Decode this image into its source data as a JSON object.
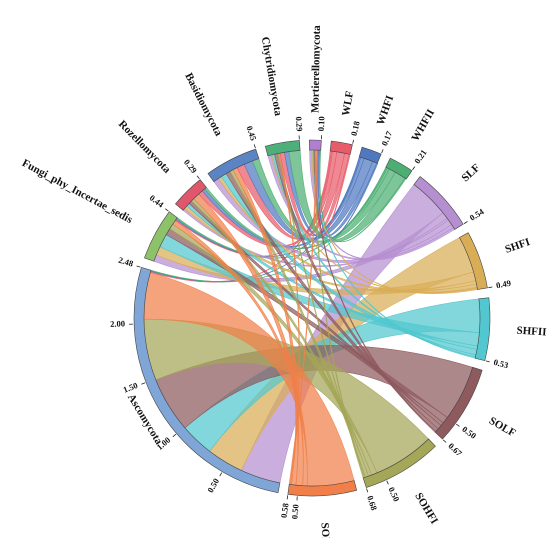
{
  "chart_data": {
    "type": "chord",
    "title": "",
    "groups": [
      {
        "name": "Ascomycota",
        "total": 2.48,
        "color": "#7fa6d6",
        "ticks": [
          "0.50",
          "1.00",
          "1.50",
          "2.00",
          "2.48"
        ]
      },
      {
        "name": "Fungi_phy_Incertae_sedis",
        "total": 0.44,
        "color": "#8dc16a",
        "ticks": [
          "0.44"
        ]
      },
      {
        "name": "Rozellomycota",
        "total": 0.29,
        "color": "#e0566d",
        "ticks": [
          "0.29"
        ]
      },
      {
        "name": "Basidiomycota",
        "total": 0.45,
        "color": "#5b84c4",
        "ticks": [
          "0.45"
        ]
      },
      {
        "name": "Chytridiomycota",
        "total": 0.29,
        "color": "#4daf7a",
        "ticks": [
          "0.29"
        ]
      },
      {
        "name": "Mortierellomycota",
        "total": 0.1,
        "color": "#b07fd1",
        "ticks": [
          "0.10"
        ]
      },
      {
        "name": "WLF",
        "total": 0.18,
        "color": "#e85c6a",
        "ticks": [
          "0.18"
        ]
      },
      {
        "name": "WHFI",
        "total": 0.17,
        "color": "#4f78c0",
        "ticks": [
          "0.17"
        ]
      },
      {
        "name": "WHFII",
        "total": 0.21,
        "color": "#4cae72",
        "ticks": [
          "0.21"
        ]
      },
      {
        "name": "SLF",
        "total": 0.54,
        "color": "#b58fd0",
        "ticks": [
          "0.54"
        ]
      },
      {
        "name": "SHFI",
        "total": 0.49,
        "color": "#d9ad56",
        "ticks": [
          "0.49"
        ]
      },
      {
        "name": "SHFII",
        "total": 0.53,
        "color": "#52c7cf",
        "ticks": [
          "0.53"
        ]
      },
      {
        "name": "SOLF",
        "total": 0.67,
        "color": "#8e5a5e",
        "ticks": [
          "0.50",
          "0.67"
        ]
      },
      {
        "name": "SOHFI",
        "total": 0.68,
        "color": "#a4a658",
        "ticks": [
          "0.50",
          "0.68"
        ]
      },
      {
        "name": "SOHFII",
        "total": 0.58,
        "color": "#f07f4a",
        "ticks": [
          "0.50",
          "0.58"
        ]
      }
    ],
    "links": [
      {
        "source": "SLF",
        "target": "Ascomycota",
        "value": 0.36
      },
      {
        "source": "SHFI",
        "target": "Ascomycota",
        "value": 0.33
      },
      {
        "source": "SHFII",
        "target": "Ascomycota",
        "value": 0.3
      },
      {
        "source": "SOLF",
        "target": "Ascomycota",
        "value": 0.5
      },
      {
        "source": "SOHFI",
        "target": "Ascomycota",
        "value": 0.55
      },
      {
        "source": "SOHFII",
        "target": "Ascomycota",
        "value": 0.42
      },
      {
        "source": "WLF",
        "target": "Ascomycota",
        "value": 0.01
      },
      {
        "source": "WHFI",
        "target": "Ascomycota",
        "value": 0.005
      },
      {
        "source": "WHFII",
        "target": "Ascomycota",
        "value": 0.005
      },
      {
        "source": "SLF",
        "target": "Fungi_phy_Incertae_sedis",
        "value": 0.06
      },
      {
        "source": "SHFI",
        "target": "Fungi_phy_Incertae_sedis",
        "value": 0.08
      },
      {
        "source": "SHFII",
        "target": "Fungi_phy_Incertae_sedis",
        "value": 0.12
      },
      {
        "source": "SOLF",
        "target": "Fungi_phy_Incertae_sedis",
        "value": 0.06
      },
      {
        "source": "SOHFI",
        "target": "Fungi_phy_Incertae_sedis",
        "value": 0.05
      },
      {
        "source": "SOHFII",
        "target": "Fungi_phy_Incertae_sedis",
        "value": 0.04
      },
      {
        "source": "WLF",
        "target": "Fungi_phy_Incertae_sedis",
        "value": 0.01
      },
      {
        "source": "WHFI",
        "target": "Fungi_phy_Incertae_sedis",
        "value": 0.01
      },
      {
        "source": "WHFII",
        "target": "Fungi_phy_Incertae_sedis",
        "value": 0.01
      },
      {
        "source": "SLF",
        "target": "Rozellomycota",
        "value": 0.02
      },
      {
        "source": "SHFI",
        "target": "Rozellomycota",
        "value": 0.03
      },
      {
        "source": "SHFII",
        "target": "Rozellomycota",
        "value": 0.03
      },
      {
        "source": "SOLF",
        "target": "Rozellomycota",
        "value": 0.03
      },
      {
        "source": "SOHFI",
        "target": "Rozellomycota",
        "value": 0.03
      },
      {
        "source": "SOHFII",
        "target": "Rozellomycota",
        "value": 0.06
      },
      {
        "source": "WLF",
        "target": "Rozellomycota",
        "value": 0.04
      },
      {
        "source": "WHFI",
        "target": "Rozellomycota",
        "value": 0.03
      },
      {
        "source": "WHFII",
        "target": "Rozellomycota",
        "value": 0.02
      },
      {
        "source": "SLF",
        "target": "Basidiomycota",
        "value": 0.05
      },
      {
        "source": "SHFI",
        "target": "Basidiomycota",
        "value": 0.03
      },
      {
        "source": "SHFII",
        "target": "Basidiomycota",
        "value": 0.05
      },
      {
        "source": "SOLF",
        "target": "Basidiomycota",
        "value": 0.04
      },
      {
        "source": "SOHFI",
        "target": "Basidiomycota",
        "value": 0.03
      },
      {
        "source": "SOHFII",
        "target": "Basidiomycota",
        "value": 0.04
      },
      {
        "source": "WLF",
        "target": "Basidiomycota",
        "value": 0.07
      },
      {
        "source": "WHFI",
        "target": "Basidiomycota",
        "value": 0.08
      },
      {
        "source": "WHFII",
        "target": "Basidiomycota",
        "value": 0.06
      },
      {
        "source": "SLF",
        "target": "Chytridiomycota",
        "value": 0.03
      },
      {
        "source": "SHFI",
        "target": "Chytridiomycota",
        "value": 0.01
      },
      {
        "source": "SHFII",
        "target": "Chytridiomycota",
        "value": 0.02
      },
      {
        "source": "SOLF",
        "target": "Chytridiomycota",
        "value": 0.03
      },
      {
        "source": "SOHFI",
        "target": "Chytridiomycota",
        "value": 0.01
      },
      {
        "source": "SOHFII",
        "target": "Chytridiomycota",
        "value": 0.01
      },
      {
        "source": "WLF",
        "target": "Chytridiomycota",
        "value": 0.04
      },
      {
        "source": "WHFI",
        "target": "Chytridiomycota",
        "value": 0.04
      },
      {
        "source": "WHFII",
        "target": "Chytridiomycota",
        "value": 0.1
      },
      {
        "source": "SLF",
        "target": "Mortierellomycota",
        "value": 0.02
      },
      {
        "source": "SHFI",
        "target": "Mortierellomycota",
        "value": 0.01
      },
      {
        "source": "SHFII",
        "target": "Mortierellomycota",
        "value": 0.01
      },
      {
        "source": "SOLF",
        "target": "Mortierellomycota",
        "value": 0.01
      },
      {
        "source": "SOHFI",
        "target": "Mortierellomycota",
        "value": 0.01
      },
      {
        "source": "SOHFII",
        "target": "Mortierellomycota",
        "value": 0.01
      },
      {
        "source": "WLF",
        "target": "Mortierellomycota",
        "value": 0.01
      },
      {
        "source": "WHFI",
        "target": "Mortierellomycota",
        "value": 0.01
      },
      {
        "source": "WHFII",
        "target": "Mortierellomycota",
        "value": 0.01
      }
    ]
  }
}
